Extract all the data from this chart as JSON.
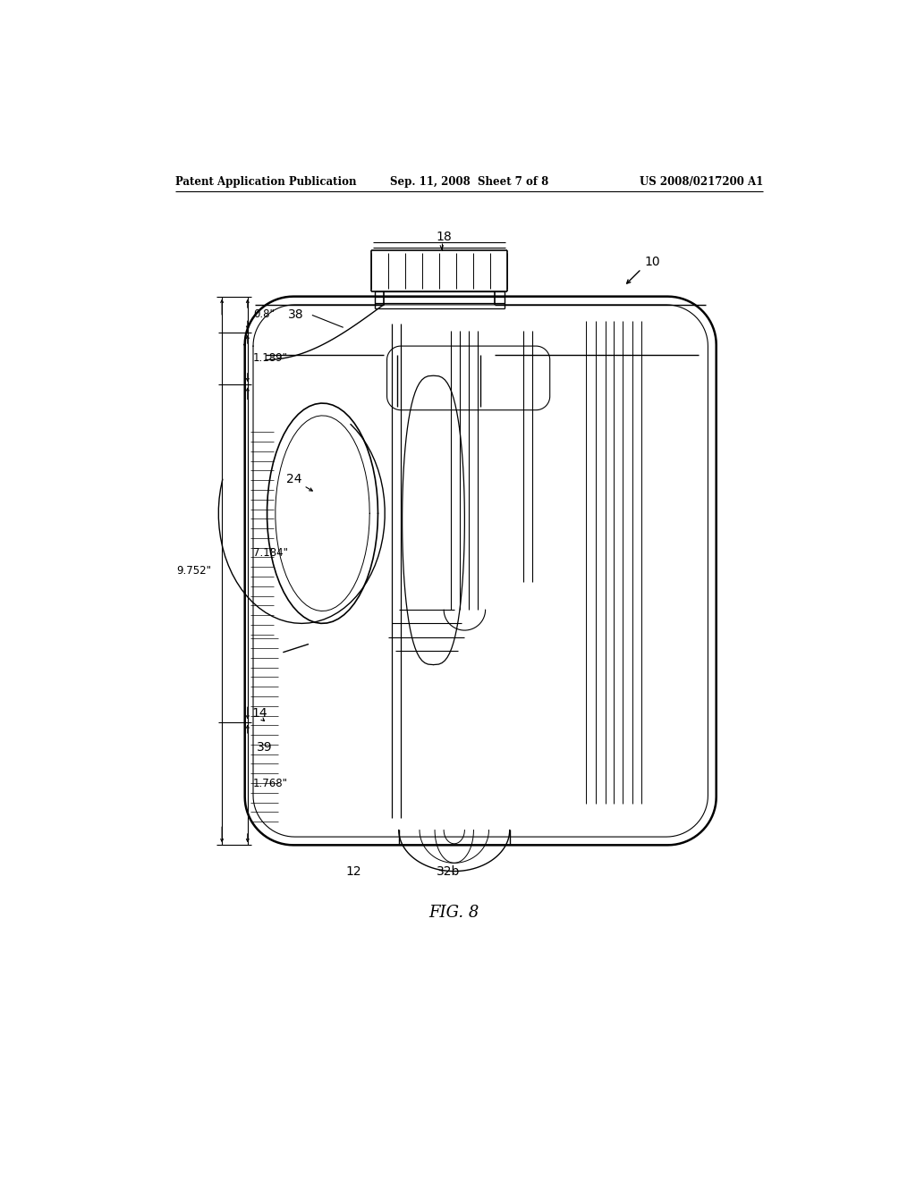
{
  "background_color": "#ffffff",
  "header_left": "Patent Application Publication",
  "header_mid": "Sep. 11, 2008  Sheet 7 of 8",
  "header_right": "US 2008/0217200 A1",
  "figure_label": "FIG. 8",
  "dimensions": {
    "dim_08": "0.8\"",
    "dim_1189": "1.189\"",
    "dim_9752": "9.752\"",
    "dim_7184": "7.184\"",
    "dim_1768": "1.768\""
  },
  "labels": {
    "label_10": "10",
    "label_12": "12",
    "label_14": "14",
    "label_18": "18",
    "label_24": "24",
    "label_32b": "32b",
    "label_38": "38",
    "label_39": "39"
  }
}
